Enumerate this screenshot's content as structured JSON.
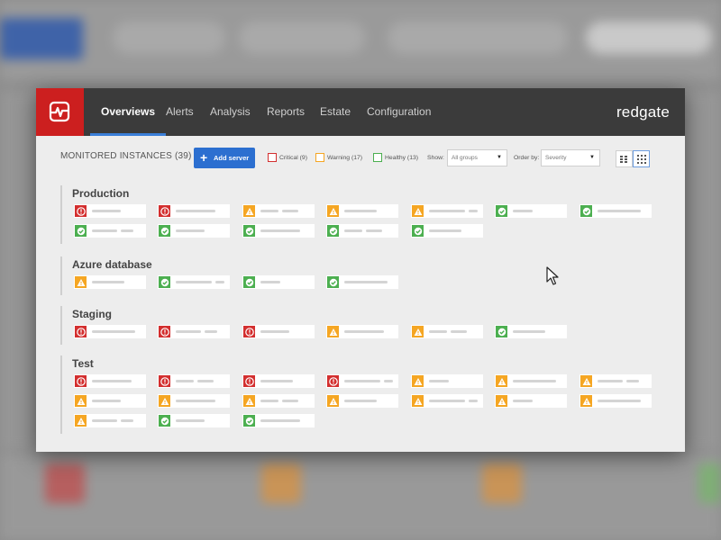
{
  "app": {
    "nav_tabs": [
      {
        "label": "Overviews",
        "active": true
      },
      {
        "label": "Alerts",
        "active": false
      },
      {
        "label": "Analysis",
        "active": false
      },
      {
        "label": "Reports",
        "active": false
      },
      {
        "label": "Estate",
        "active": false
      },
      {
        "label": "Configuration",
        "active": false
      }
    ],
    "brand": "redgate",
    "logo_icon": "pulse-icon"
  },
  "toolbar": {
    "title": "MONITORED INSTANCES (39)",
    "add_server_label": "Add server",
    "filters": {
      "critical": "Critical (9)",
      "warning": "Warning (17)",
      "healthy": "Healthy (13)"
    },
    "show_label": "Show:",
    "show_value": "All groups",
    "order_label": "Order by:",
    "order_value": "Severity",
    "view_modes": [
      "list-view-icon",
      "grid-view-icon"
    ],
    "active_view": "grid-view-icon"
  },
  "colors": {
    "critical": "#d32f2f",
    "warning": "#f5a623",
    "healthy": "#4caf50",
    "accent": "#2c6fd0",
    "brand_red": "#cc1f1f"
  },
  "groups": [
    {
      "name": "Production",
      "servers": [
        "critical",
        "critical",
        "warning",
        "warning",
        "warning",
        "healthy",
        "healthy",
        "healthy",
        "healthy",
        "healthy",
        "healthy",
        "healthy"
      ]
    },
    {
      "name": "Azure database",
      "servers": [
        "warning",
        "healthy",
        "healthy",
        "healthy"
      ]
    },
    {
      "name": "Staging",
      "servers": [
        "critical",
        "critical",
        "critical",
        "warning",
        "warning",
        "healthy"
      ]
    },
    {
      "name": "Test",
      "servers": [
        "critical",
        "critical",
        "critical",
        "critical",
        "warning",
        "warning",
        "warning",
        "warning",
        "warning",
        "warning",
        "warning",
        "warning",
        "warning",
        "warning",
        "warning",
        "healthy",
        "healthy"
      ]
    }
  ]
}
